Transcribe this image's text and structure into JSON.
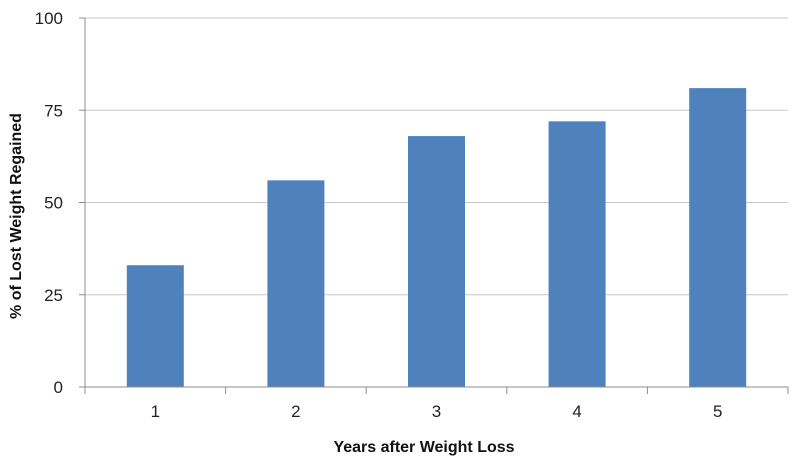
{
  "chart_data": {
    "type": "bar",
    "title": "",
    "xlabel": "Years after Weight Loss",
    "ylabel": "% of Lost Weight Regained",
    "categories": [
      "1",
      "2",
      "3",
      "4",
      "5"
    ],
    "values": [
      33,
      56,
      68,
      72,
      81
    ],
    "ylim": [
      0,
      100
    ],
    "yticks": [
      0,
      25,
      50,
      75,
      100
    ],
    "grid": true,
    "legend": "none",
    "colors": {
      "bar": "#4f81bd"
    }
  }
}
